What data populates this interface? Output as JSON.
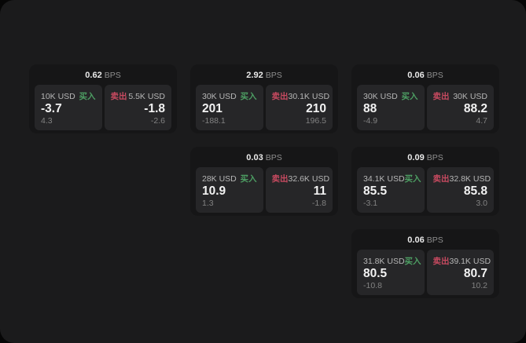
{
  "labels": {
    "bps": "BPS",
    "buy": "买入",
    "sell": "卖出"
  },
  "colors": {
    "page_bg": "#060606",
    "panel_bg": "#1b1b1c",
    "card_bg": "#161617",
    "tile_bg": "#262628",
    "buy_green": "#4d9e63",
    "sell_red": "#c74a60"
  },
  "cards": [
    {
      "bps": "0.62",
      "buy": {
        "amount": "10K USD",
        "price": "-3.7",
        "delta": "4.3"
      },
      "sell": {
        "amount": "5.5K USD",
        "price": "-1.8",
        "delta": "-2.6"
      }
    },
    {
      "bps": "2.92",
      "buy": {
        "amount": "30K USD",
        "price": "201",
        "delta": "-188.1"
      },
      "sell": {
        "amount": "30.1K USD",
        "price": "210",
        "delta": "196.5"
      }
    },
    {
      "bps": "0.06",
      "buy": {
        "amount": "30K USD",
        "price": "88",
        "delta": "-4.9"
      },
      "sell": {
        "amount": "30K USD",
        "price": "88.2",
        "delta": "4.7"
      }
    },
    {
      "bps": "0.03",
      "buy": {
        "amount": "28K USD",
        "price": "10.9",
        "delta": "1.3"
      },
      "sell": {
        "amount": "32.6K USD",
        "price": "11",
        "delta": "-1.8"
      }
    },
    {
      "bps": "0.09",
      "buy": {
        "amount": "34.1K USD",
        "price": "85.5",
        "delta": "-3.1"
      },
      "sell": {
        "amount": "32.8K USD",
        "price": "85.8",
        "delta": "3.0"
      }
    },
    {
      "bps": "0.06",
      "buy": {
        "amount": "31.8K USD",
        "price": "80.5",
        "delta": "-10.8"
      },
      "sell": {
        "amount": "39.1K USD",
        "price": "80.7",
        "delta": "10.2"
      }
    }
  ]
}
